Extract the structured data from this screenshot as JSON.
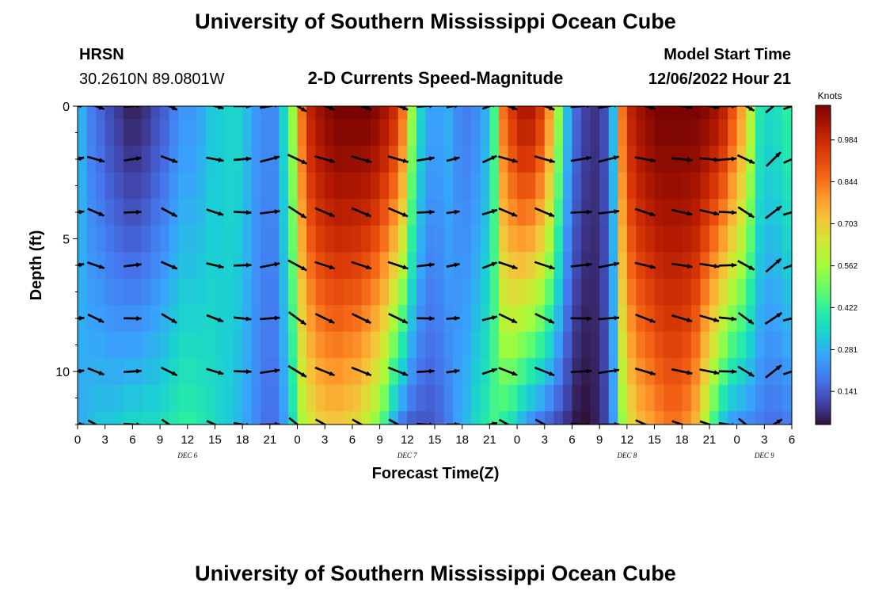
{
  "header": {
    "title": "University of Southern Mississippi Ocean Cube",
    "station_code": "HRSN",
    "station_coords": "30.2610N  89.0801W",
    "chart_title": "2-D Currents Speed-Magnitude",
    "model_start_label": "Model Start Time",
    "model_start_value": "12/06/2022 Hour 21"
  },
  "footer": {
    "title": "University of Southern Mississippi Ocean Cube"
  },
  "colors": {
    "colormap": [
      "#30123b",
      "#4145ab",
      "#4675ed",
      "#39a2fc",
      "#1bcfd4",
      "#24eca6",
      "#61fc6c",
      "#a4fc3b",
      "#d1e834",
      "#f3c63a",
      "#fe9b2d",
      "#f36315",
      "#d93806",
      "#b11901",
      "#7a0403"
    ]
  },
  "chart_data": {
    "type": "heatmap",
    "title": "2-D Currents Speed-Magnitude",
    "xlabel": "Forecast Time(Z)",
    "ylabel": "Depth (ft)",
    "colorbar_label": "Knots",
    "colorbar_ticks": [
      "0.984",
      "0.844",
      "0.703",
      "0.562",
      "0.422",
      "0.281",
      "0.141"
    ],
    "colorbar_tick_values": [
      0.984,
      0.844,
      0.703,
      0.562,
      0.422,
      0.281,
      0.141
    ],
    "color_range": [
      0.03,
      1.1
    ],
    "x_range_hours": [
      0,
      78
    ],
    "x_tick_labels": [
      "0",
      "3",
      "6",
      "9",
      "12",
      "15",
      "18",
      "21",
      "0",
      "3",
      "6",
      "9",
      "12",
      "15",
      "18",
      "21",
      "0",
      "3",
      "6",
      "9",
      "12",
      "15",
      "18",
      "21",
      "0",
      "3",
      "6"
    ],
    "date_labels": [
      {
        "text": "DEC 6",
        "hour": 12
      },
      {
        "text": "DEC 7",
        "hour": 36
      },
      {
        "text": "DEC 8",
        "hour": 60
      },
      {
        "text": "DEC 9",
        "hour": 75
      }
    ],
    "y_range_ft": [
      0,
      12
    ],
    "y_ticks": [
      "0",
      "5",
      "10"
    ],
    "y_tick_values": [
      0,
      5,
      10
    ],
    "depth_levels_ft": [
      0,
      1,
      2,
      3,
      4,
      5,
      6,
      7,
      8,
      9,
      10,
      11,
      12
    ],
    "time_columns_hours": [
      0,
      1,
      2,
      3,
      4,
      5,
      6,
      7,
      8,
      9,
      10,
      11,
      12,
      13,
      14,
      15,
      16,
      17,
      18,
      19,
      20,
      21,
      22,
      23,
      24,
      25,
      26,
      27,
      28,
      29,
      30,
      31,
      32,
      33,
      34,
      35,
      36,
      37,
      38,
      39,
      40,
      41,
      42,
      43,
      44,
      45,
      46,
      47,
      48,
      49,
      50,
      51,
      52,
      53,
      54,
      55,
      56,
      57,
      58,
      59,
      60,
      61,
      62,
      63,
      64,
      65,
      66,
      67,
      68,
      69,
      70,
      71,
      72,
      73,
      74,
      75,
      76,
      77
    ],
    "speed_profile_surface_knots": [
      0.28,
      0.2,
      0.16,
      0.12,
      0.09,
      0.06,
      0.06,
      0.08,
      0.12,
      0.15,
      0.2,
      0.24,
      0.24,
      0.27,
      0.32,
      0.33,
      0.35,
      0.35,
      0.3,
      0.24,
      0.22,
      0.22,
      0.35,
      0.55,
      0.85,
      1.0,
      1.05,
      1.08,
      1.1,
      1.1,
      1.1,
      1.1,
      1.08,
      1.04,
      0.98,
      0.85,
      0.55,
      0.35,
      0.26,
      0.26,
      0.28,
      0.22,
      0.2,
      0.22,
      0.28,
      0.45,
      0.85,
      0.95,
      1.02,
      1.02,
      0.95,
      0.8,
      0.55,
      0.3,
      0.16,
      0.1,
      0.08,
      0.12,
      0.3,
      0.85,
      1.0,
      1.05,
      1.08,
      1.1,
      1.1,
      1.1,
      1.1,
      1.1,
      1.08,
      1.05,
      1.0,
      0.9,
      0.78,
      0.6,
      0.4,
      0.36,
      0.38,
      0.42
    ],
    "speed_profile_bottom_knots": [
      0.28,
      0.3,
      0.32,
      0.32,
      0.33,
      0.35,
      0.35,
      0.36,
      0.36,
      0.38,
      0.4,
      0.42,
      0.42,
      0.4,
      0.38,
      0.35,
      0.33,
      0.3,
      0.26,
      0.22,
      0.18,
      0.18,
      0.25,
      0.38,
      0.58,
      0.65,
      0.7,
      0.72,
      0.72,
      0.7,
      0.68,
      0.62,
      0.55,
      0.45,
      0.3,
      0.2,
      0.15,
      0.14,
      0.14,
      0.16,
      0.2,
      0.26,
      0.3,
      0.36,
      0.4,
      0.45,
      0.42,
      0.38,
      0.3,
      0.24,
      0.2,
      0.16,
      0.12,
      0.08,
      0.04,
      0.03,
      0.05,
      0.1,
      0.25,
      0.55,
      0.68,
      0.75,
      0.78,
      0.82,
      0.85,
      0.85,
      0.82,
      0.75,
      0.6,
      0.45,
      0.33,
      0.26,
      0.24,
      0.22,
      0.2,
      0.18,
      0.18,
      0.2
    ],
    "vector_rows_depth_ft": [
      0,
      2,
      4,
      6,
      8,
      10,
      12
    ],
    "vector_cols_hours": [
      0,
      2,
      6,
      10,
      15,
      18,
      21,
      24,
      27,
      31,
      35,
      38,
      41,
      45,
      47,
      51,
      55,
      58,
      62,
      66,
      69,
      71,
      73,
      76,
      78
    ],
    "vector_direction_deg_row": [
      10,
      -20,
      5,
      -25,
      -15,
      0,
      10,
      -30,
      -20,
      -20,
      -20,
      5,
      10,
      20,
      -20,
      -20,
      5,
      10,
      -15,
      -10,
      -10,
      0,
      -30,
      40,
      20
    ],
    "vector_speed_norm_row": [
      0.6,
      0.8,
      0.8,
      0.8,
      0.8,
      0.8,
      0.9,
      0.95,
      0.95,
      0.95,
      0.95,
      0.8,
      0.6,
      0.7,
      0.9,
      0.95,
      0.95,
      0.95,
      0.95,
      0.95,
      0.9,
      0.8,
      0.85,
      0.9,
      0.8
    ]
  }
}
